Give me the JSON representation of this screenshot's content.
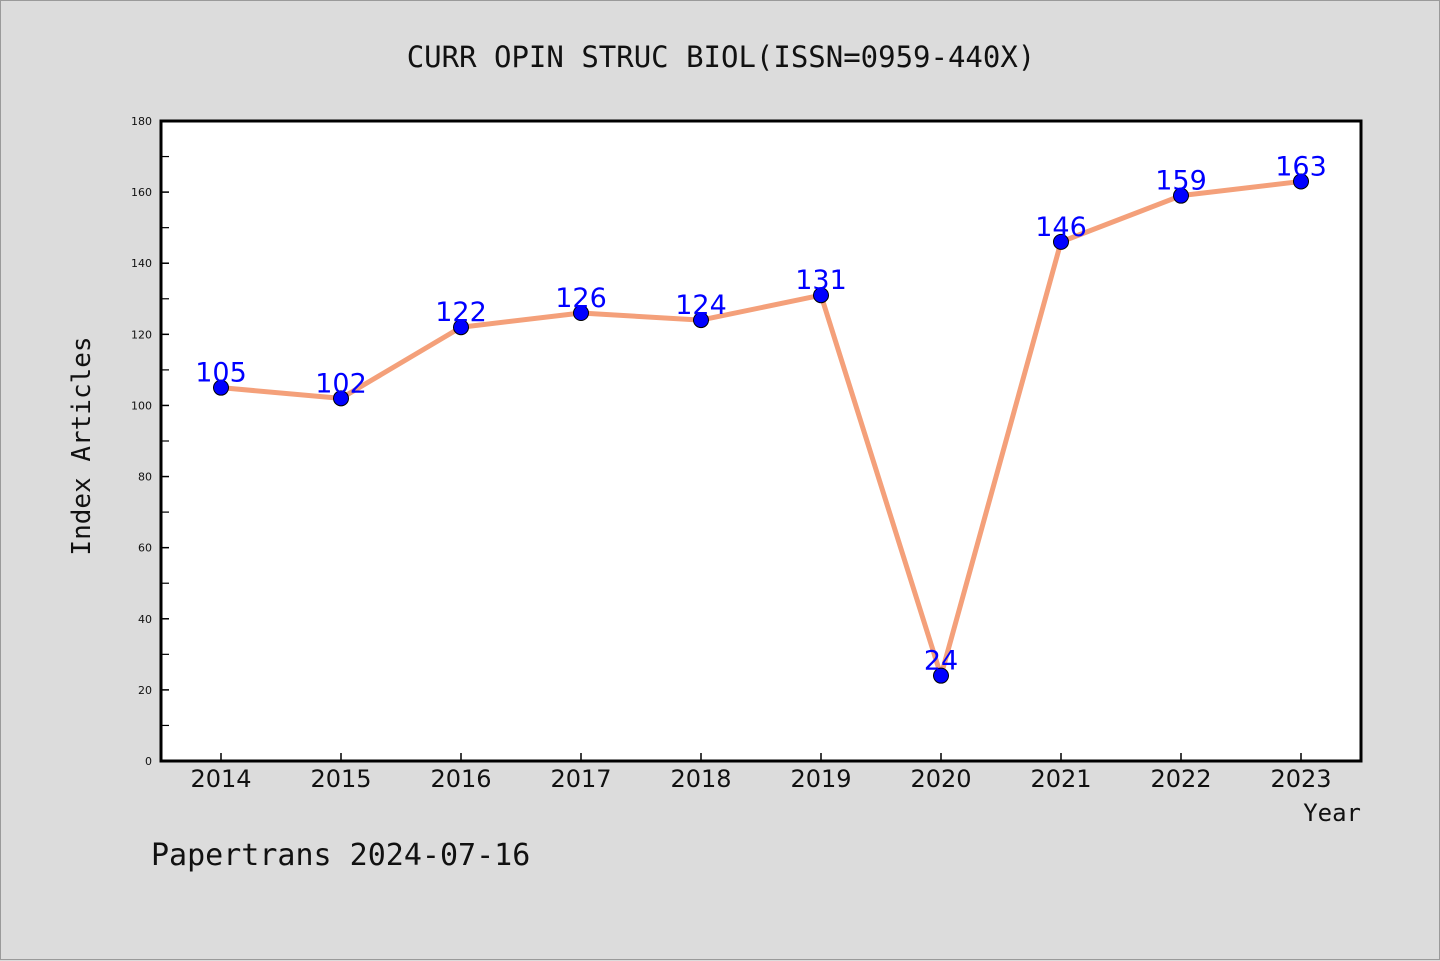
{
  "chart_data": {
    "type": "line",
    "title": "CURR OPIN STRUC BIOL(ISSN=0959-440X)",
    "xlabel": "Year",
    "ylabel": "Index Articles",
    "categories": [
      "2014",
      "2015",
      "2016",
      "2017",
      "2018",
      "2019",
      "2020",
      "2021",
      "2022",
      "2023"
    ],
    "values": [
      105,
      102,
      122,
      126,
      124,
      131,
      24,
      146,
      159,
      163
    ],
    "ylim": [
      0,
      180
    ],
    "yticks": [
      0,
      20,
      40,
      60,
      80,
      100,
      120,
      140,
      160,
      180
    ],
    "grid": false,
    "line_color": "#f4a07a",
    "marker_color": "#0000ff",
    "label_color": "#0000ff"
  },
  "footer": {
    "text": "Papertrans 2024-07-16"
  }
}
